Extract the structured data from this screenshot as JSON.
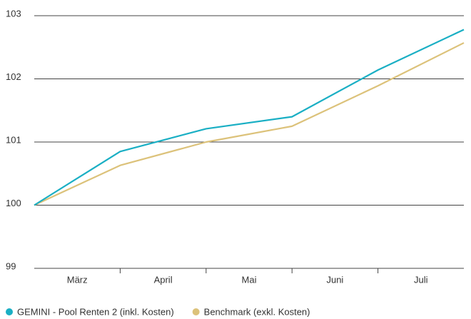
{
  "chart_data": {
    "type": "line",
    "xlim": [
      0,
      5
    ],
    "xticks": [
      {
        "value": 0.5,
        "label": "März"
      },
      {
        "value": 1.5,
        "label": "April"
      },
      {
        "value": 2.5,
        "label": "Mai"
      },
      {
        "value": 3.5,
        "label": "Juni"
      },
      {
        "value": 4.5,
        "label": "Juli"
      }
    ],
    "x": [
      0,
      1,
      2,
      3,
      4,
      5
    ],
    "ylim": [
      99,
      103
    ],
    "yticks": [
      99,
      100,
      101,
      102,
      103
    ],
    "grid": true,
    "legend": "bottom-left",
    "series": [
      {
        "name": "GEMINI - Pool Renten 2 (inkl. Kosten)",
        "color": "#1aafc4",
        "values": [
          100,
          100.85,
          101.21,
          101.4,
          102.14,
          102.78
        ]
      },
      {
        "name": "Benchmark (exkl. Kosten)",
        "color": "#dcc27a",
        "values": [
          100,
          100.63,
          101.0,
          101.25,
          101.89,
          102.57
        ]
      }
    ]
  }
}
